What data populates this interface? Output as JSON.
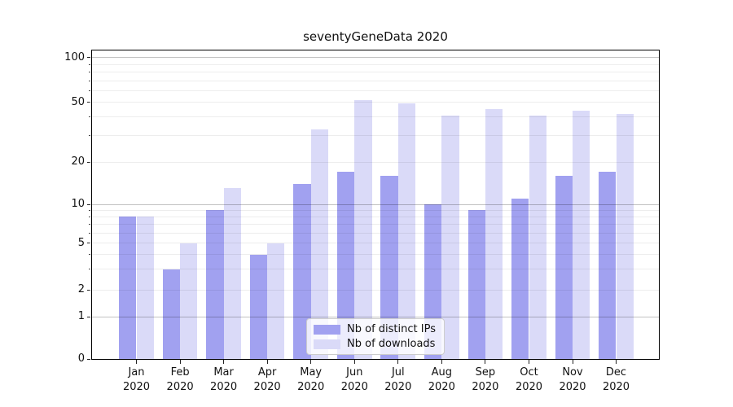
{
  "figure": {
    "title": "seventyGeneData 2020"
  },
  "chart_data": {
    "type": "bar",
    "title": "seventyGeneData 2020",
    "yscale": "log1p (symlog-like, linear 0-1 then logarithmic)",
    "grid": "horizontal, major and minor",
    "legend_position": "lower center",
    "ylim": [
      0,
      116
    ],
    "categories": [
      "Jan 2020",
      "Feb 2020",
      "Mar 2020",
      "Apr 2020",
      "May 2020",
      "Jun 2020",
      "Jul 2020",
      "Aug 2020",
      "Sep 2020",
      "Oct 2020",
      "Nov 2020",
      "Dec 2020"
    ],
    "series": [
      {
        "name": "Nb of distinct IPs",
        "color": "#a1a1f0",
        "values": [
          8,
          3,
          9,
          4,
          14,
          17,
          16,
          10,
          9,
          11,
          16,
          17
        ]
      },
      {
        "name": "Nb of downloads",
        "color": "#dadaf8",
        "values": [
          8,
          5,
          13,
          5,
          33,
          52,
          49,
          41,
          45,
          41,
          44,
          42
        ]
      }
    ],
    "ytick_labels": [
      "100",
      "50",
      "20",
      "10",
      "5",
      "2",
      "1",
      "0"
    ],
    "ytick_values": [
      100,
      50,
      20,
      10,
      5,
      2,
      1,
      0
    ],
    "major_gridline_values": [
      1,
      10,
      100
    ],
    "minor_gridline_values": [
      2,
      3,
      4,
      5,
      6,
      7,
      8,
      9,
      20,
      30,
      40,
      50,
      60,
      70,
      80,
      90
    ]
  },
  "legend": {
    "items": [
      {
        "label": "Nb of distinct IPs"
      },
      {
        "label": "Nb of downloads"
      }
    ]
  },
  "colors": {
    "bar_distinct_ips": "#a1a1f0",
    "bar_downloads": "#dadaf8",
    "grid_major": "#c2c2c2",
    "grid_minor": "#ededed",
    "spine": "#000000",
    "text": "#111111"
  }
}
